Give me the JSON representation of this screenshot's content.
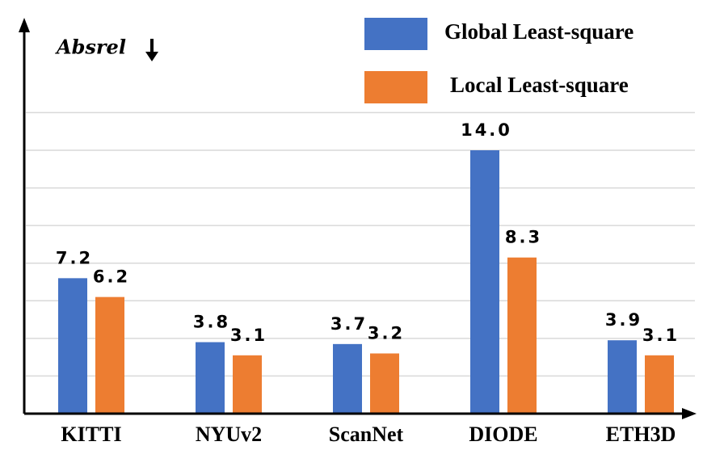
{
  "chart_data": {
    "type": "bar",
    "y_label": "Absrel",
    "categories": [
      "KITTI",
      "NYUv2",
      "ScanNet",
      "DIODE",
      "ETH3D"
    ],
    "series": [
      {
        "name": "Global Least-square",
        "color": "#4472c4",
        "values": [
          7.2,
          3.8,
          3.7,
          14.0,
          3.9
        ],
        "value_labels": [
          "7.2",
          "3.8",
          "3.7",
          "14.0",
          "3.9"
        ]
      },
      {
        "name": "Local Least-square",
        "color": "#ed7d31",
        "values": [
          6.2,
          3.1,
          3.2,
          8.3,
          3.1
        ],
        "value_labels": [
          "6.2",
          "3.1",
          "3.2",
          "8.3",
          "3.1"
        ]
      }
    ],
    "ylim": [
      0,
      21
    ],
    "yticks": [
      2,
      4,
      6,
      8,
      10,
      12,
      14,
      16
    ],
    "grid": true
  }
}
